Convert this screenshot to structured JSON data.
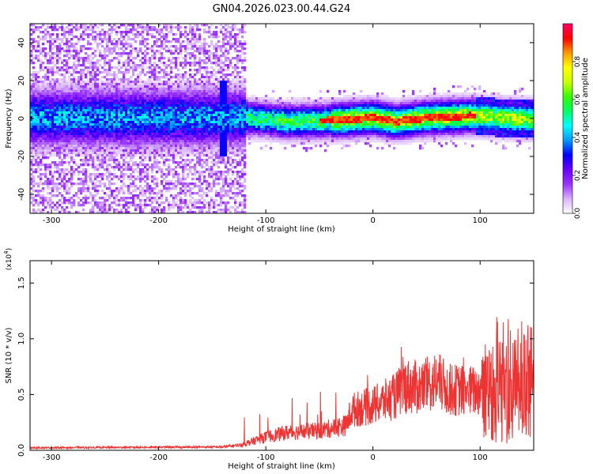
{
  "title": "GN04.2026.023.00.44.G24",
  "chart_data": [
    {
      "type": "heatmap",
      "xlabel": "Height of straight line (km)",
      "ylabel": "Frequency (Hz)",
      "xlim": [
        -320,
        150
      ],
      "ylim": [
        -50,
        50
      ],
      "xticks": [
        -300,
        -200,
        -100,
        0,
        100
      ],
      "yticks": [
        -40,
        -20,
        0,
        20,
        40
      ],
      "colorbar": {
        "label": "Normalized spectral amplitude",
        "range": [
          0.0,
          1.0
        ],
        "ticks": [
          0.0,
          0.2,
          0.4,
          0.6,
          0.8
        ],
        "tick_labels": [
          "0.0",
          "0.2",
          "0.4",
          "0.6",
          "0.8"
        ],
        "colors": [
          "#ffffff",
          "#d9b3ff",
          "#9933ff",
          "#6600ff",
          "#0000ff",
          "#0099ff",
          "#00ffff",
          "#00ff66",
          "#33ff00",
          "#ccff00",
          "#ffff00",
          "#ff9900",
          "#ff0000",
          "#ff0066"
        ]
      },
      "ridge": [
        {
          "x": -120,
          "y": 1
        },
        {
          "x": -80,
          "y": -1
        },
        {
          "x": -40,
          "y": -0.5
        },
        {
          "x": 0,
          "y": 1
        },
        {
          "x": 20,
          "y": -1
        },
        {
          "x": 50,
          "y": 1
        },
        {
          "x": 90,
          "y": 2
        },
        {
          "x": 150,
          "y": 0
        }
      ]
    },
    {
      "type": "line",
      "xlabel": "Height of straight line (km)",
      "ylabel": "SNR (10 * v/v)",
      "scale_label": "(x10",
      "scale_exp": "4",
      "scale_close": ")",
      "xlim": [
        -320,
        150
      ],
      "ylim": [
        0,
        1.7
      ],
      "xticks": [
        -300,
        -200,
        -100,
        0,
        100
      ],
      "yticks": [
        0.0,
        0.5,
        1.0,
        1.5
      ],
      "ytick_labels": [
        "0.0",
        "0.5",
        "1.0",
        "1.5"
      ],
      "color": "#ee3333",
      "envelope": [
        {
          "x": -320,
          "y": 0.03
        },
        {
          "x": -140,
          "y": 0.04
        },
        {
          "x": -120,
          "y": 0.07
        },
        {
          "x": -100,
          "y": 0.15
        },
        {
          "x": -80,
          "y": 0.2
        },
        {
          "x": -50,
          "y": 0.22
        },
        {
          "x": -25,
          "y": 0.28
        },
        {
          "x": -20,
          "y": 0.45
        },
        {
          "x": 0,
          "y": 0.5
        },
        {
          "x": 20,
          "y": 0.6
        },
        {
          "x": 30,
          "y": 0.72
        },
        {
          "x": 45,
          "y": 0.7
        },
        {
          "x": 60,
          "y": 0.78
        },
        {
          "x": 70,
          "y": 0.68
        },
        {
          "x": 100,
          "y": 0.66
        },
        {
          "x": 102,
          "y": 0.9
        },
        {
          "x": 150,
          "y": 0.9
        }
      ]
    }
  ]
}
